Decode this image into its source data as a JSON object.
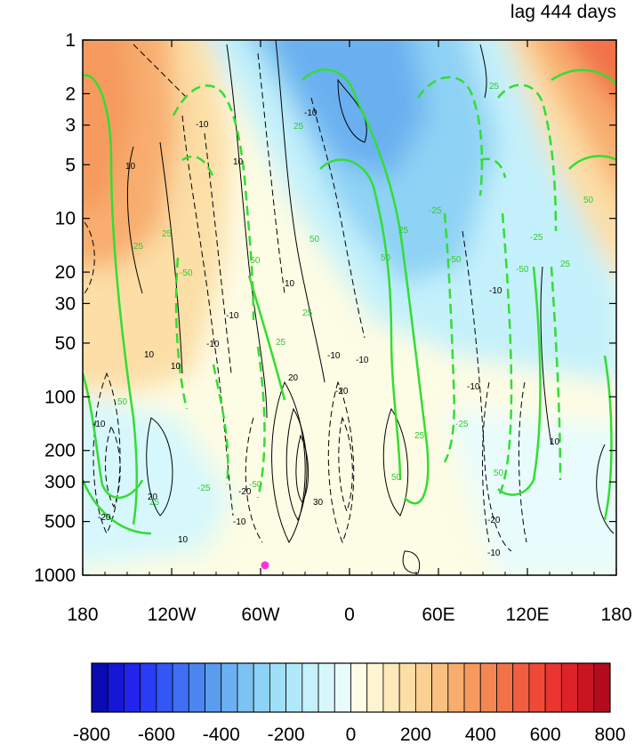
{
  "chart_data": {
    "type": "contour",
    "title": "lag 444 days",
    "xlabel": "",
    "ylabel": "",
    "x_ticks": [
      "180",
      "120W",
      "60W",
      "0",
      "60E",
      "120E",
      "180"
    ],
    "x_tick_values": [
      -180,
      -120,
      -60,
      0,
      60,
      120,
      180
    ],
    "y_ticks": [
      "1",
      "2",
      "3",
      "5",
      "10",
      "20",
      "30",
      "50",
      "100",
      "200",
      "300",
      "500",
      "1000"
    ],
    "y_tick_values": [
      1,
      2,
      3,
      5,
      10,
      20,
      30,
      50,
      100,
      200,
      300,
      500,
      1000
    ],
    "y_scale": "log",
    "y_inverted": true,
    "xlim": [
      -180,
      180
    ],
    "ylim": [
      1000,
      1
    ],
    "colorbar": {
      "orientation": "horizontal",
      "labels": [
        "-800",
        "-600",
        "-400",
        "-200",
        "0",
        "200",
        "400",
        "600",
        "800"
      ],
      "label_values": [
        -800,
        -600,
        -400,
        -200,
        0,
        200,
        400,
        600,
        800
      ],
      "levels": [
        -800,
        -750,
        -700,
        -650,
        -600,
        -550,
        -500,
        -450,
        -400,
        -350,
        -300,
        -250,
        -200,
        -150,
        -100,
        -50,
        0,
        50,
        100,
        150,
        200,
        250,
        300,
        350,
        400,
        450,
        500,
        550,
        600,
        650,
        700,
        750,
        800
      ],
      "colors": [
        "#0b0bb3",
        "#1616d6",
        "#2323ee",
        "#2a3cf4",
        "#3357f5",
        "#3f6ef4",
        "#4b86f0",
        "#5a9cee",
        "#6bb0f0",
        "#7cc2f2",
        "#8ed2f5",
        "#a0dff8",
        "#b2e9fa",
        "#c4f1fb",
        "#d6f8fc",
        "#e8fcfd",
        "#fdfce4",
        "#fdf4d0",
        "#fdeabb",
        "#fcdea6",
        "#fbd092",
        "#f9c080",
        "#f8ad6e",
        "#f69a5f",
        "#f48653",
        "#f27248",
        "#f05e3f",
        "#ee4a37",
        "#ea3530",
        "#dd2229",
        "#c91523",
        "#b20c1e"
      ]
    },
    "contour_label_values": [
      "10",
      "-10",
      "20",
      "-20",
      "30",
      "25",
      "-25",
      "50",
      "-50"
    ],
    "green_contour_color": "#33dd33",
    "marker": {
      "lon": -57,
      "pressure": 880,
      "color": "#ff33dd"
    }
  }
}
